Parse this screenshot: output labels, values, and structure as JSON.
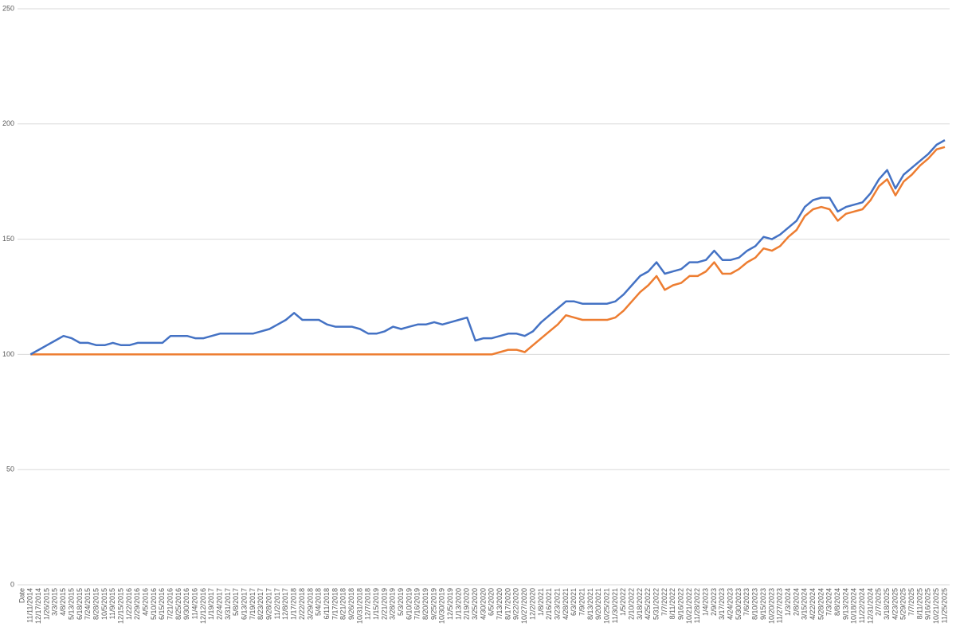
{
  "chart_data": {
    "type": "line",
    "categories": [
      "Date",
      "11/11/2014",
      "12/17/2014",
      "1/26/2015",
      "3/3/2015",
      "4/8/2015",
      "5/13/2015",
      "6/18/2015",
      "7/24/2015",
      "8/28/2015",
      "10/5/2015",
      "11/9/2015",
      "12/15/2015",
      "1/22/2016",
      "2/29/2016",
      "4/5/2016",
      "5/10/2016",
      "6/15/2016",
      "7/21/2016",
      "8/25/2016",
      "9/30/2016",
      "11/4/2016",
      "12/12/2016",
      "1/19/2017",
      "2/24/2017",
      "3/31/2017",
      "5/8/2017",
      "6/13/2017",
      "7/19/2017",
      "8/23/2017",
      "9/28/2017",
      "11/2/2017",
      "12/8/2017",
      "1/17/2018",
      "2/22/2018",
      "3/29/2018",
      "5/4/2018",
      "6/11/2018",
      "7/17/2018",
      "8/21/2018",
      "9/26/2018",
      "10/31/2018",
      "12/7/2018",
      "1/15/2019",
      "2/21/2019",
      "3/28/2019",
      "5/3/2019",
      "6/10/2019",
      "7/16/2019",
      "8/20/2019",
      "9/25/2019",
      "10/30/2019",
      "12/5/2019",
      "1/13/2020",
      "2/19/2020",
      "3/25/2020",
      "4/30/2020",
      "6/5/2020",
      "7/13/2020",
      "8/17/2020",
      "9/22/2020",
      "10/27/2020",
      "12/2/2020",
      "1/8/2021",
      "2/16/2021",
      "3/23/2021",
      "4/28/2021",
      "6/3/2021",
      "7/9/2021",
      "8/13/2021",
      "9/20/2021",
      "10/25/2021",
      "11/30/2021",
      "1/5/2022",
      "2/10/2022",
      "3/18/2022",
      "4/25/2022",
      "5/31/2022",
      "7/7/2022",
      "8/11/2022",
      "9/16/2022",
      "10/21/2022",
      "11/28/2022",
      "1/4/2023",
      "2/9/2023",
      "3/17/2023",
      "4/24/2023",
      "5/30/2023",
      "7/6/2023",
      "8/10/2023",
      "9/15/2023",
      "10/20/2023",
      "11/27/2023",
      "1/3/2024",
      "2/8/2024",
      "3/15/2024",
      "4/22/2024",
      "5/28/2024",
      "7/3/2024",
      "8/8/2024",
      "9/13/2024",
      "10/18/2024",
      "11/22/2024",
      "12/31/2024",
      "2/7/2025",
      "3/18/2025",
      "4/23/2025",
      "5/29/2025",
      "7/7/2025",
      "8/11/2025",
      "9/16/2025",
      "10/21/2025",
      "11/25/2025"
    ],
    "series": [
      {
        "color": "#4472c4",
        "values": [
          null,
          100,
          102,
          104,
          106,
          108,
          107,
          105,
          105,
          104,
          104,
          105,
          104,
          104,
          105,
          105,
          105,
          105,
          108,
          108,
          108,
          107,
          107,
          108,
          109,
          109,
          109,
          109,
          109,
          110,
          111,
          113,
          115,
          118,
          115,
          115,
          115,
          113,
          112,
          112,
          112,
          111,
          109,
          109,
          110,
          112,
          111,
          112,
          113,
          113,
          114,
          113,
          114,
          115,
          116,
          106,
          107,
          107,
          108,
          109,
          109,
          108,
          110,
          114,
          117,
          120,
          123,
          123,
          122,
          122,
          122,
          122,
          123,
          126,
          130,
          134,
          136,
          140,
          135,
          136,
          137,
          140,
          140,
          141,
          145,
          141,
          141,
          142,
          145,
          147,
          151,
          150,
          152,
          155,
          158,
          164,
          167,
          168,
          168,
          162,
          164,
          165,
          166,
          170,
          176,
          180,
          172,
          178,
          181,
          184,
          187,
          191,
          193
        ]
      },
      {
        "color": "#ed7d31",
        "values": [
          null,
          100,
          100,
          100,
          100,
          100,
          100,
          100,
          100,
          100,
          100,
          100,
          100,
          100,
          100,
          100,
          100,
          100,
          100,
          100,
          100,
          100,
          100,
          100,
          100,
          100,
          100,
          100,
          100,
          100,
          100,
          100,
          100,
          100,
          100,
          100,
          100,
          100,
          100,
          100,
          100,
          100,
          100,
          100,
          100,
          100,
          100,
          100,
          100,
          100,
          100,
          100,
          100,
          100,
          100,
          100,
          100,
          100,
          101,
          102,
          102,
          101,
          104,
          107,
          110,
          113,
          117,
          116,
          115,
          115,
          115,
          115,
          116,
          119,
          123,
          127,
          130,
          134,
          128,
          130,
          131,
          134,
          134,
          136,
          140,
          135,
          135,
          137,
          140,
          142,
          146,
          145,
          147,
          151,
          154,
          160,
          163,
          164,
          163,
          158,
          161,
          162,
          163,
          167,
          173,
          176,
          169,
          175,
          178,
          182,
          185,
          189,
          190
        ]
      }
    ],
    "ylim": [
      0,
      250
    ],
    "yticks": [
      0,
      50,
      100,
      150,
      200,
      250
    ],
    "grid": true
  }
}
